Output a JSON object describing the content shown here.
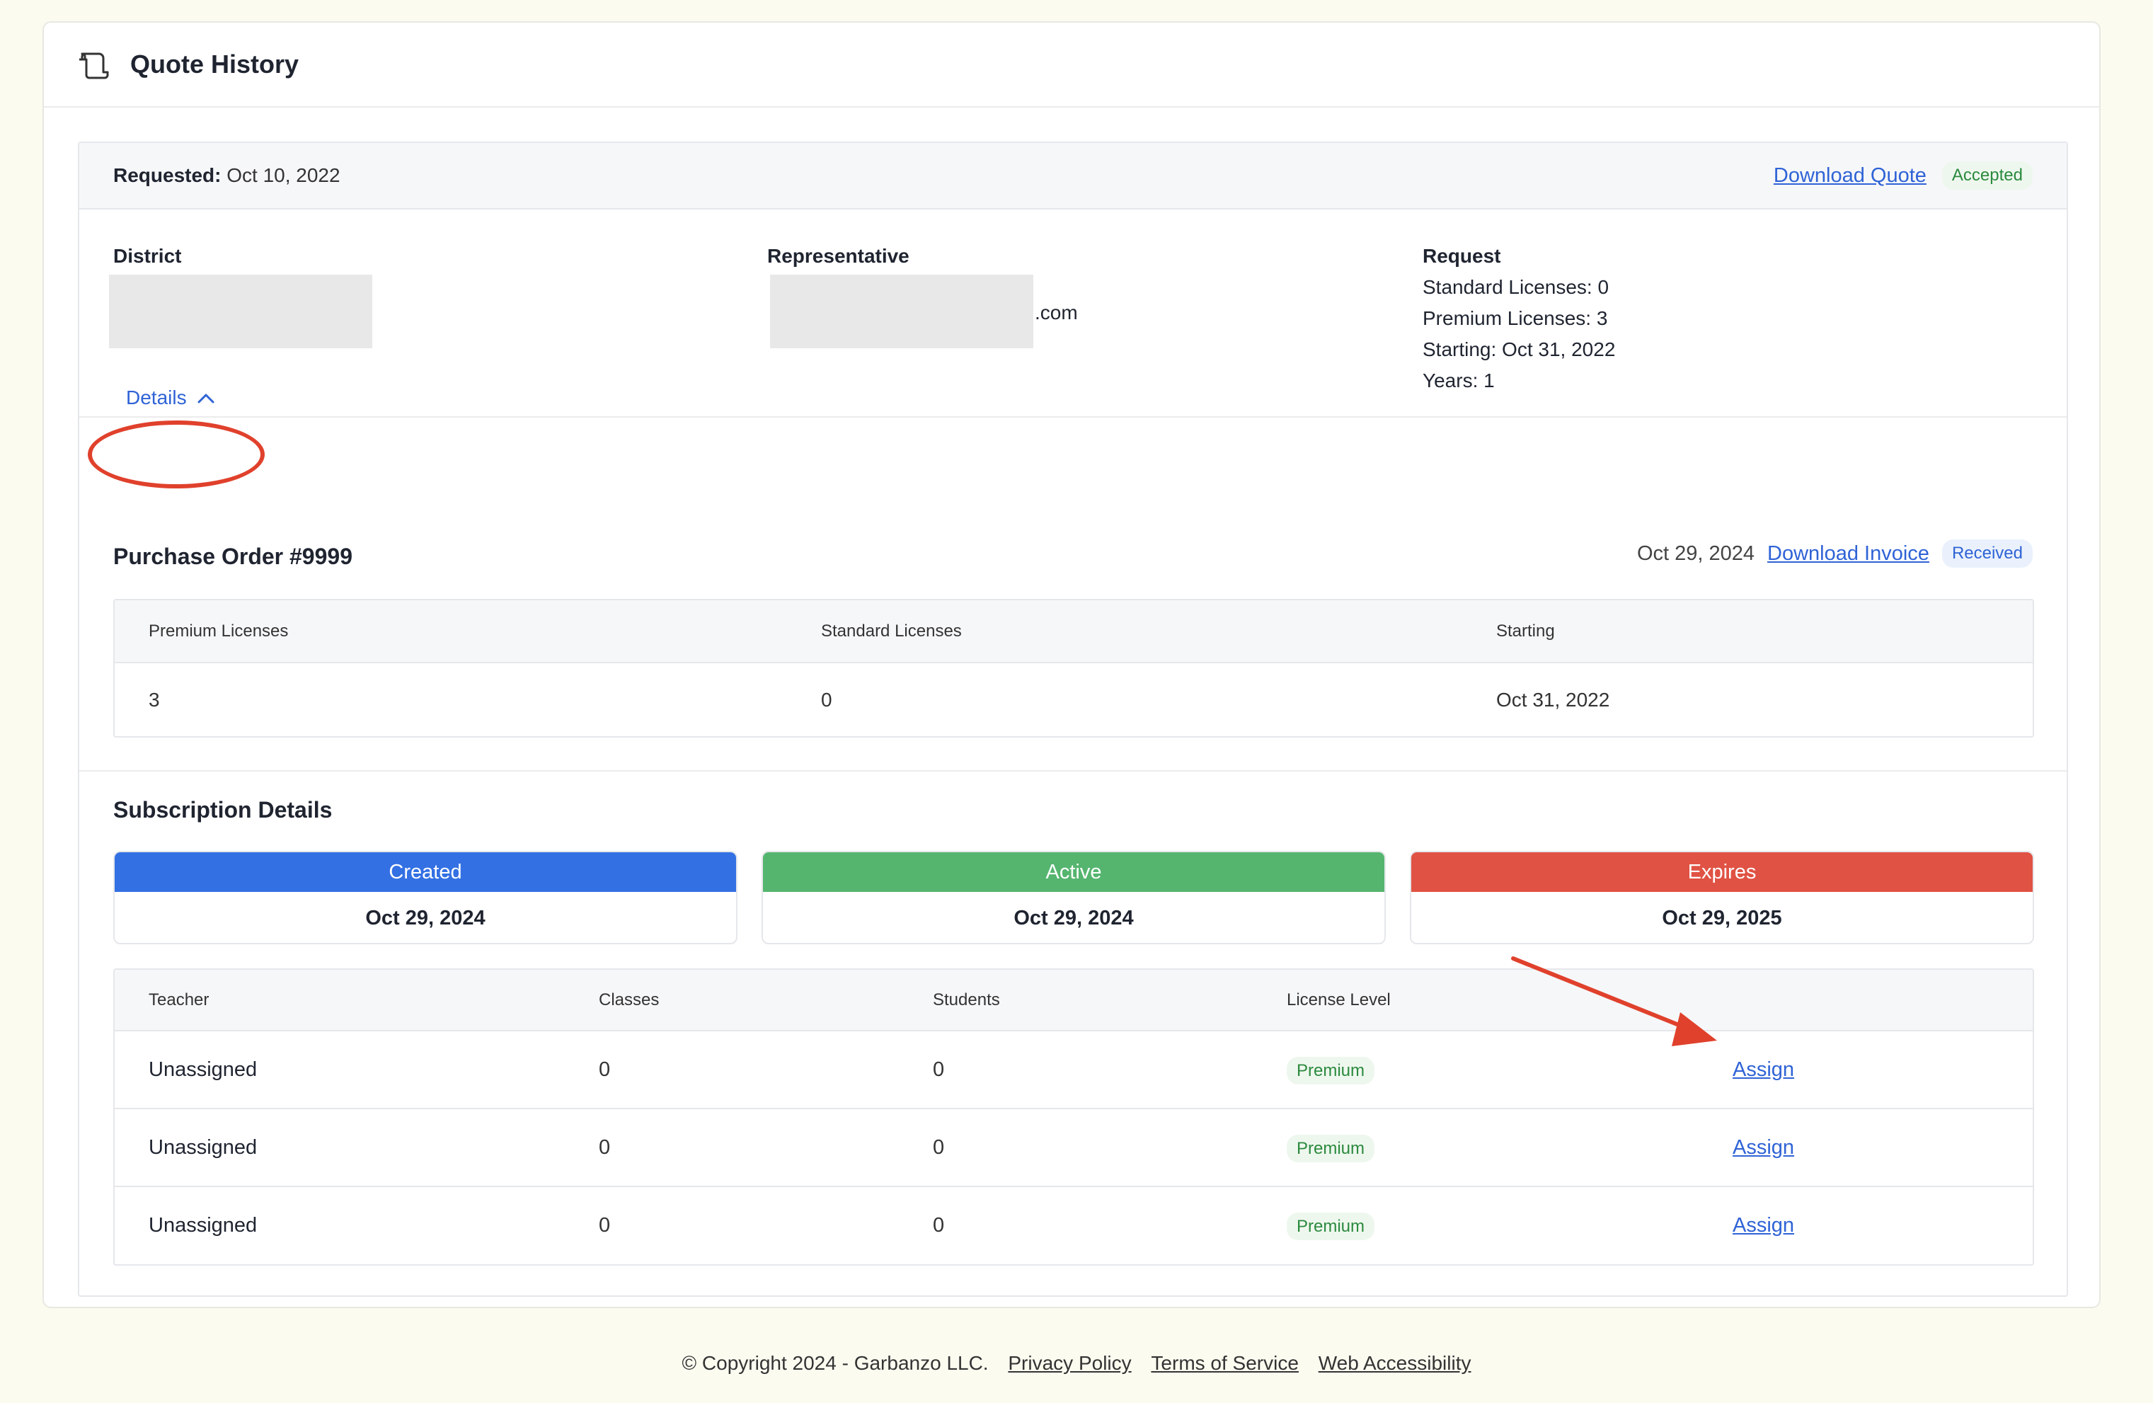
{
  "header": {
    "title": "Quote History",
    "icon": "scroll-icon"
  },
  "quote": {
    "requested_label": "Requested:",
    "requested_date": "Oct 10, 2022",
    "download_quote": "Download Quote",
    "status": "Accepted",
    "district": {
      "heading": "District"
    },
    "representative": {
      "heading": "Representative",
      "email_suffix": ".com"
    },
    "request": {
      "heading": "Request",
      "lines": [
        "Standard Licenses: 0",
        "Premium Licenses: 3",
        "Starting: Oct 31, 2022",
        "Years: 1"
      ]
    }
  },
  "details_toggle": {
    "label": "Details",
    "icon": "chevron-up-icon"
  },
  "purchase_order": {
    "title": "Purchase Order #9999",
    "date": "Oct 29, 2024",
    "download_invoice": "Download Invoice",
    "status": "Received",
    "columns": [
      "Premium Licenses",
      "Standard Licenses",
      "Starting"
    ],
    "row": [
      "3",
      "0",
      "Oct 31, 2022"
    ]
  },
  "subscription": {
    "title": "Subscription Details",
    "cards": [
      {
        "label": "Created",
        "date": "Oct 29, 2024",
        "color": "#3370e3"
      },
      {
        "label": "Active",
        "date": "Oct 29, 2024",
        "color": "#55b56f"
      },
      {
        "label": "Expires",
        "date": "Oct 29, 2025",
        "color": "#e05243"
      }
    ],
    "columns": [
      "Teacher",
      "Classes",
      "Students",
      "License Level"
    ],
    "rows": [
      {
        "teacher": "Unassigned",
        "classes": "0",
        "students": "0",
        "level": "Premium",
        "action": "Assign"
      },
      {
        "teacher": "Unassigned",
        "classes": "0",
        "students": "0",
        "level": "Premium",
        "action": "Assign"
      },
      {
        "teacher": "Unassigned",
        "classes": "0",
        "students": "0",
        "level": "Premium",
        "action": "Assign"
      }
    ]
  },
  "footer": {
    "copyright": "© Copyright 2024 - Garbanzo LLC.",
    "links": [
      "Privacy Policy",
      "Terms of Service",
      "Web Accessibility"
    ]
  },
  "colors": {
    "accent": "#2f63d6",
    "annotation": "#e0412c",
    "success": "#2b8a3e"
  }
}
